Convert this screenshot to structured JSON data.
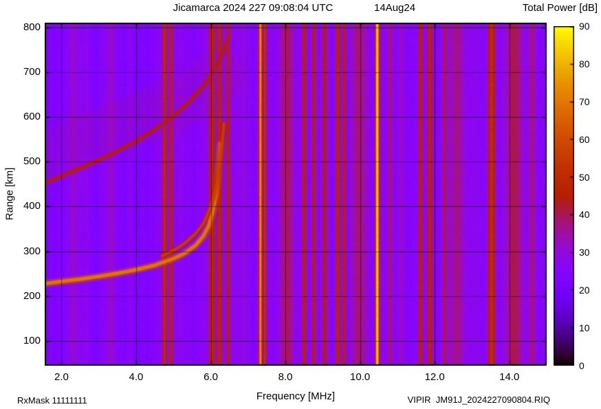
{
  "header": {
    "title": "Jicamarca 2024 227 09:08:04 UTC",
    "date": "14Aug24",
    "colorbar_title": "Total Power [dB]"
  },
  "footer": {
    "rxmask": "RxMask 11111111",
    "file": "VIPIR  JM91J_2024227090804.RIQ"
  },
  "chart_data": {
    "type": "heatmap",
    "title": "Jicamarca 2024 227 09:08:04 UTC  14Aug24",
    "xlabel": "Frequency [MHz]",
    "ylabel": "Range [km]",
    "xlim": [
      1.55,
      15.0
    ],
    "ylim": [
      45,
      810
    ],
    "xticks": [
      2,
      4,
      6,
      8,
      10,
      12,
      14
    ],
    "xtick_labels": [
      "2.0",
      "4.0",
      "6.0",
      "8.0",
      "10.0",
      "12.0",
      "14.0"
    ],
    "yticks": [
      100,
      200,
      300,
      400,
      500,
      600,
      700,
      800
    ],
    "ytick_labels": [
      "100",
      "200",
      "300",
      "400",
      "500",
      "600",
      "700",
      "800"
    ],
    "grid": true,
    "colorbar": {
      "label": "Total Power [dB]",
      "min": 0,
      "max": 90,
      "ticks": [
        0,
        10,
        20,
        30,
        40,
        50,
        60,
        70,
        80,
        90
      ],
      "colormap": "gnuplot"
    },
    "noise": {
      "background_db": 25,
      "sigma_db": 2.2
    },
    "rfi_lines": [
      {
        "f": 2.32,
        "db": 33,
        "w": 0.05
      },
      {
        "f": 3.32,
        "db": 34,
        "w": 0.05
      },
      {
        "f": 4.76,
        "db": 51,
        "w": 0.06
      },
      {
        "f": 4.93,
        "db": 48,
        "w": 0.05
      },
      {
        "f": 6.03,
        "db": 51,
        "w": 0.08
      },
      {
        "f": 6.23,
        "db": 49,
        "w": 0.07
      },
      {
        "f": 6.46,
        "db": 45,
        "w": 0.06
      },
      {
        "f": 7.33,
        "db": 76,
        "w": 0.045
      },
      {
        "f": 7.45,
        "db": 54,
        "w": 0.04
      },
      {
        "f": 8.03,
        "db": 40,
        "w": 0.18
      },
      {
        "f": 8.5,
        "db": 47,
        "w": 0.06
      },
      {
        "f": 8.76,
        "db": 45,
        "w": 0.06
      },
      {
        "f": 9.05,
        "db": 43,
        "w": 0.08
      },
      {
        "f": 9.4,
        "db": 49,
        "w": 0.06
      },
      {
        "f": 9.57,
        "db": 47,
        "w": 0.05
      },
      {
        "f": 9.97,
        "db": 38,
        "w": 0.22
      },
      {
        "f": 10.46,
        "db": 86,
        "w": 0.05
      },
      {
        "f": 10.8,
        "db": 37,
        "w": 0.08
      },
      {
        "f": 11.62,
        "db": 47,
        "w": 0.06
      },
      {
        "f": 11.87,
        "db": 48,
        "w": 0.07
      },
      {
        "f": 12.28,
        "db": 39,
        "w": 0.09
      },
      {
        "f": 12.58,
        "db": 37,
        "w": 0.2
      },
      {
        "f": 13.52,
        "db": 51,
        "w": 0.1
      },
      {
        "f": 14.12,
        "db": 41,
        "w": 0.22
      },
      {
        "f": 14.6,
        "db": 37,
        "w": 0.1
      }
    ],
    "traces": [
      {
        "name": "F-region O-mode trace",
        "db": 70,
        "width_km": 8,
        "points": [
          [
            1.55,
            228
          ],
          [
            2.0,
            233
          ],
          [
            2.5,
            238
          ],
          [
            3.0,
            244
          ],
          [
            3.5,
            251
          ],
          [
            4.0,
            259
          ],
          [
            4.5,
            269
          ],
          [
            5.0,
            284
          ],
          [
            5.3,
            296
          ],
          [
            5.6,
            314
          ],
          [
            5.8,
            334
          ],
          [
            5.95,
            358
          ],
          [
            6.05,
            388
          ],
          [
            6.13,
            424
          ],
          [
            6.19,
            464
          ],
          [
            6.23,
            504
          ],
          [
            6.26,
            540
          ]
        ]
      },
      {
        "name": "F-region X-mode trace",
        "db": 56,
        "width_km": 6,
        "points": [
          [
            4.7,
            290
          ],
          [
            5.0,
            302
          ],
          [
            5.3,
            318
          ],
          [
            5.6,
            340
          ],
          [
            5.8,
            362
          ],
          [
            5.95,
            390
          ],
          [
            6.07,
            422
          ],
          [
            6.17,
            458
          ],
          [
            6.25,
            500
          ],
          [
            6.31,
            545
          ],
          [
            6.35,
            585
          ]
        ]
      },
      {
        "name": "spread-F upper trace",
        "db": 45,
        "width_km": 7,
        "points": [
          [
            1.55,
            452
          ],
          [
            2.0,
            468
          ],
          [
            2.5,
            486
          ],
          [
            3.0,
            504
          ],
          [
            3.5,
            524
          ],
          [
            4.0,
            546
          ],
          [
            4.5,
            572
          ],
          [
            5.0,
            602
          ],
          [
            5.4,
            632
          ],
          [
            5.8,
            668
          ],
          [
            6.1,
            706
          ],
          [
            6.35,
            750
          ],
          [
            6.48,
            782
          ]
        ]
      }
    ],
    "diffuse_cloud": {
      "db": 35,
      "width_km": 115,
      "points": [
        [
          1.6,
          515
        ],
        [
          2.4,
          540
        ],
        [
          3.2,
          565
        ],
        [
          4.0,
          592
        ],
        [
          4.7,
          615
        ],
        [
          5.3,
          640
        ],
        [
          5.8,
          662
        ],
        [
          6.2,
          690
        ]
      ]
    }
  }
}
